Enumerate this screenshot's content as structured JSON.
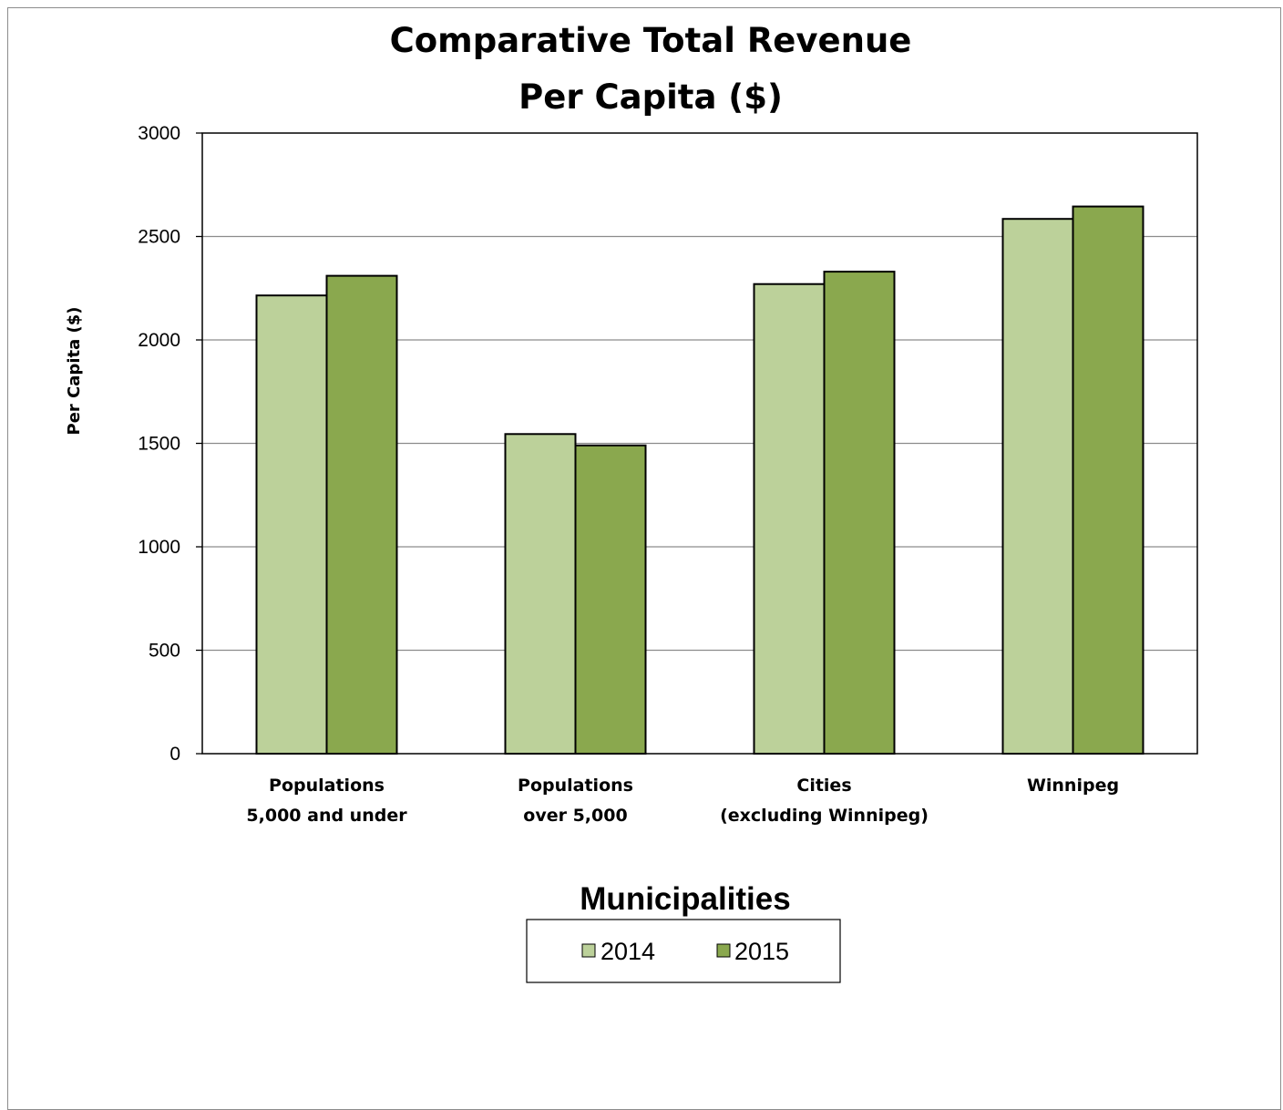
{
  "chart_data": {
    "type": "bar",
    "title_lines": [
      "Comparative Total Revenue",
      "Per Capita ($)"
    ],
    "xlabel": "Municipalities",
    "ylabel": "Per Capita ($)",
    "ylim": [
      0,
      3000
    ],
    "yticks": [
      0,
      500,
      1000,
      1500,
      2000,
      2500,
      3000
    ],
    "grid": true,
    "legend_position": "bottom-center",
    "categories": [
      [
        "Populations",
        "5,000 and under"
      ],
      [
        "Populations",
        "over 5,000"
      ],
      [
        "Cities",
        "(excluding Winnipeg)"
      ],
      [
        "Winnipeg"
      ]
    ],
    "series": [
      {
        "name": "2014",
        "color": "#bcd19a",
        "values": [
          2215,
          1545,
          2270,
          2585
        ]
      },
      {
        "name": "2015",
        "color": "#8aa84e",
        "values": [
          2310,
          1490,
          2330,
          2645
        ]
      }
    ]
  }
}
